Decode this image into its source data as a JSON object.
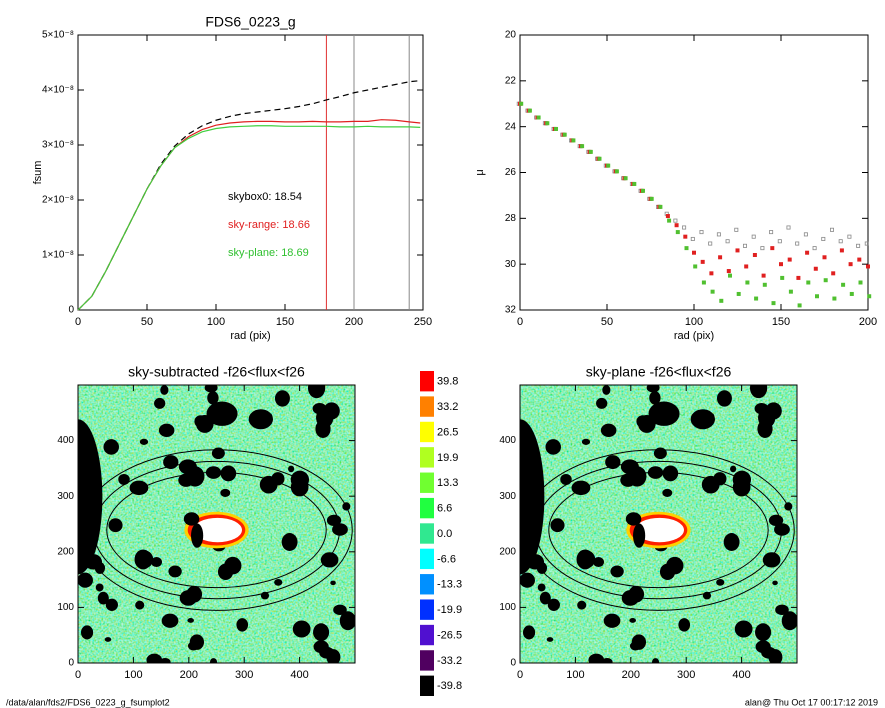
{
  "chart_data": [
    {
      "type": "line",
      "title": "FDS6_0223_g",
      "x_label": "rad (pix)",
      "y_label": "fsum",
      "xlim": [
        0,
        250
      ],
      "xticks": [
        0,
        50,
        100,
        150,
        200,
        250
      ],
      "ylim": [
        0,
        5e-08
      ],
      "yticks": [
        0,
        {
          "value": 1e-08,
          "label": "1×10⁻⁸"
        },
        {
          "value": 2e-08,
          "label": "2×10⁻⁸"
        },
        {
          "value": 3e-08,
          "label": "3×10⁻⁸"
        },
        {
          "value": 4e-08,
          "label": "4×10⁻⁸"
        },
        {
          "value": 5e-08,
          "label": "5×10⁻⁸"
        }
      ],
      "x": [
        0,
        10,
        20,
        30,
        40,
        50,
        60,
        70,
        80,
        90,
        100,
        110,
        120,
        130,
        140,
        150,
        160,
        170,
        180,
        190,
        200,
        210,
        220,
        230,
        240,
        248
      ],
      "series": [
        {
          "color": "#000000",
          "dashed": true,
          "values": [
            0,
            2.5e-09,
            7e-09,
            1.2e-08,
            1.7e-08,
            2.2e-08,
            2.65e-08,
            2.98e-08,
            3.2e-08,
            3.35e-08,
            3.45e-08,
            3.52e-08,
            3.57e-08,
            3.6e-08,
            3.63e-08,
            3.66e-08,
            3.7e-08,
            3.75e-08,
            3.82e-08,
            3.88e-08,
            3.95e-08,
            4e-08,
            4.05e-08,
            4.1e-08,
            4.15e-08,
            4.17e-08
          ]
        },
        {
          "color": "#e02020",
          "dashed": false,
          "values": [
            0,
            2.5e-09,
            7e-09,
            1.2e-08,
            1.7e-08,
            2.2e-08,
            2.62e-08,
            2.95e-08,
            3.15e-08,
            3.28e-08,
            3.36e-08,
            3.4e-08,
            3.42e-08,
            3.43e-08,
            3.43e-08,
            3.42e-08,
            3.42e-08,
            3.43e-08,
            3.42e-08,
            3.42e-08,
            3.43e-08,
            3.43e-08,
            3.46e-08,
            3.45e-08,
            3.42e-08,
            3.4e-08
          ]
        },
        {
          "color": "#40d040",
          "dashed": false,
          "values": [
            0,
            2.5e-09,
            7e-09,
            1.2e-08,
            1.7e-08,
            2.2e-08,
            2.62e-08,
            2.95e-08,
            3.12e-08,
            3.24e-08,
            3.3e-08,
            3.33e-08,
            3.34e-08,
            3.35e-08,
            3.35e-08,
            3.34e-08,
            3.34e-08,
            3.34e-08,
            3.34e-08,
            3.33e-08,
            3.33e-08,
            3.34e-08,
            3.33e-08,
            3.33e-08,
            3.33e-08,
            3.32e-08
          ]
        }
      ],
      "vlines": [
        {
          "x": 180,
          "color": "#e03030"
        },
        {
          "x": 200,
          "color": "#888888"
        },
        {
          "x": 240,
          "color": "#888888"
        }
      ],
      "annotations": [
        {
          "text": "skybox0: 18.54",
          "color": "#000000"
        },
        {
          "text": "sky-range: 18.66",
          "color": "#e02020"
        },
        {
          "text": "sky-plane: 18.69",
          "color": "#30c030"
        }
      ]
    },
    {
      "type": "scatter",
      "x_label": "rad (pix)",
      "y_label": "μ",
      "xlim": [
        0,
        200
      ],
      "xticks": [
        0,
        50,
        100,
        150,
        200
      ],
      "ylim": [
        32,
        20
      ],
      "yticks": [
        20,
        22,
        24,
        26,
        28,
        30,
        32
      ],
      "x": [
        0,
        5,
        10,
        15,
        20,
        25,
        30,
        35,
        40,
        45,
        50,
        55,
        60,
        65,
        70,
        75,
        80,
        85,
        90,
        95,
        100,
        105,
        110,
        115,
        120,
        125,
        130,
        135,
        140,
        145,
        150,
        155,
        160,
        165,
        170,
        175,
        180,
        185,
        190,
        195,
        200
      ],
      "series": [
        {
          "color": "#888888",
          "marker": "open",
          "values": [
            23.0,
            23.3,
            23.6,
            23.85,
            24.1,
            24.35,
            24.6,
            24.85,
            25.1,
            25.4,
            25.7,
            25.95,
            26.25,
            26.5,
            26.8,
            27.15,
            27.5,
            27.8,
            28.1,
            28.4,
            28.9,
            28.6,
            29.1,
            28.7,
            29.0,
            28.5,
            29.2,
            28.8,
            29.3,
            28.6,
            29.0,
            28.4,
            29.1,
            28.7,
            29.3,
            28.9,
            28.5,
            29.0,
            28.8,
            29.2,
            29.1
          ]
        },
        {
          "color": "#e02020",
          "marker": "filled",
          "values": [
            23.0,
            23.3,
            23.6,
            23.85,
            24.1,
            24.35,
            24.6,
            24.85,
            25.1,
            25.4,
            25.7,
            25.95,
            26.25,
            26.5,
            26.8,
            27.15,
            27.5,
            27.9,
            28.3,
            28.8,
            29.5,
            29.9,
            30.4,
            29.7,
            30.3,
            29.4,
            30.1,
            29.6,
            30.5,
            29.3,
            30.0,
            29.8,
            30.6,
            29.5,
            30.2,
            29.7,
            30.4,
            29.4,
            30.0,
            29.8,
            30.1
          ]
        },
        {
          "color": "#50c030",
          "marker": "filled",
          "values": [
            23.0,
            23.3,
            23.6,
            23.85,
            24.1,
            24.35,
            24.6,
            24.85,
            25.1,
            25.4,
            25.7,
            25.95,
            26.25,
            26.5,
            26.8,
            27.15,
            27.5,
            28.1,
            28.6,
            29.3,
            30.1,
            30.8,
            31.2,
            31.6,
            30.5,
            31.3,
            30.8,
            31.5,
            30.9,
            31.7,
            30.6,
            31.2,
            31.8,
            30.8,
            31.4,
            30.7,
            31.5,
            30.9,
            31.3,
            30.8,
            31.4
          ]
        }
      ]
    },
    {
      "type": "image",
      "title": "sky-subtracted -f26<flux<f26",
      "xlim": [
        0,
        500
      ],
      "xticks": [
        0,
        100,
        200,
        300,
        400
      ],
      "ylim": [
        0,
        500
      ],
      "yticks": [
        0,
        100,
        200,
        300,
        400
      ]
    },
    {
      "type": "colorbar",
      "colors": [
        "#ff0000",
        "#ff8000",
        "#ffff00",
        "#b0ff20",
        "#70ff30",
        "#20ff40",
        "#30e890",
        "#00ffff",
        "#0090ff",
        "#0030ff",
        "#5010d0",
        "#500060",
        "#000000"
      ],
      "ticks": [
        39.8,
        33.2,
        26.5,
        19.9,
        13.3,
        6.6,
        {
          "value": 0,
          "label": "0.0"
        },
        -6.6,
        -13.3,
        -19.9,
        -26.5,
        -33.2,
        -39.8
      ]
    },
    {
      "type": "image",
      "title": "sky-plane -f26<flux<f26",
      "xlim": [
        0,
        500
      ],
      "xticks": [
        0,
        100,
        200,
        300,
        400
      ],
      "ylim": [
        0,
        500
      ],
      "yticks": [
        0,
        100,
        200,
        300,
        400
      ]
    }
  ],
  "footer": {
    "left": "/data/alan/fds2/FDS6_0223_g_fsumplot2",
    "right": "alan@  Thu Oct 17 00:17:12 2019"
  }
}
